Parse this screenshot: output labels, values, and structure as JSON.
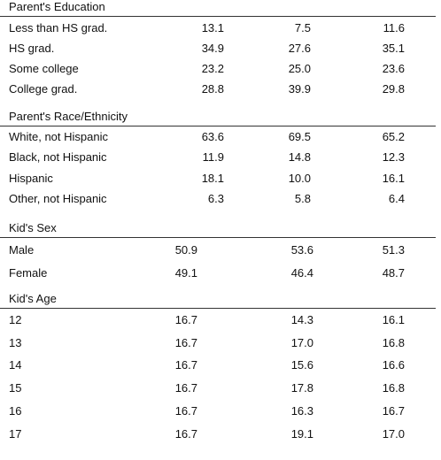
{
  "sections": [
    {
      "title": "Parent's Education",
      "rows": [
        {
          "label": "Less than HS grad.",
          "values": [
            "13.1",
            "7.5",
            "11.6"
          ]
        },
        {
          "label": "HS grad.",
          "values": [
            "34.9",
            "27.6",
            "35.1"
          ]
        },
        {
          "label": "Some college",
          "values": [
            "23.2",
            "25.0",
            "23.6"
          ]
        },
        {
          "label": "College grad.",
          "values": [
            "28.8",
            "39.9",
            "29.8"
          ]
        }
      ]
    },
    {
      "title": "Parent's Race/Ethnicity",
      "rows": [
        {
          "label": "White, not Hispanic",
          "values": [
            "63.6",
            "69.5",
            "65.2"
          ]
        },
        {
          "label": "Black, not Hispanic",
          "values": [
            "11.9",
            "14.8",
            "12.3"
          ]
        },
        {
          "label": "Hispanic",
          "values": [
            "18.1",
            "10.0",
            "16.1"
          ]
        },
        {
          "label": "Other, not Hispanic",
          "values": [
            "6.3",
            "5.8",
            "6.4"
          ]
        }
      ]
    },
    {
      "title": "Kid's Sex",
      "rows": [
        {
          "label": "Male",
          "values": [
            "50.9",
            "53.6",
            "51.3"
          ]
        },
        {
          "label": "Female",
          "values": [
            "49.1",
            "46.4",
            "48.7"
          ]
        }
      ]
    },
    {
      "title": "Kid's Age",
      "rows": [
        {
          "label": "12",
          "values": [
            "16.7",
            "14.3",
            "16.1"
          ]
        },
        {
          "label": "13",
          "values": [
            "16.7",
            "17.0",
            "16.8"
          ]
        },
        {
          "label": "14",
          "values": [
            "16.7",
            "15.6",
            "16.6"
          ]
        },
        {
          "label": "15",
          "values": [
            "16.7",
            "17.8",
            "16.8"
          ]
        },
        {
          "label": "16",
          "values": [
            "16.7",
            "16.3",
            "16.7"
          ]
        },
        {
          "label": "17",
          "values": [
            "16.7",
            "19.1",
            "17.0"
          ]
        }
      ]
    }
  ]
}
